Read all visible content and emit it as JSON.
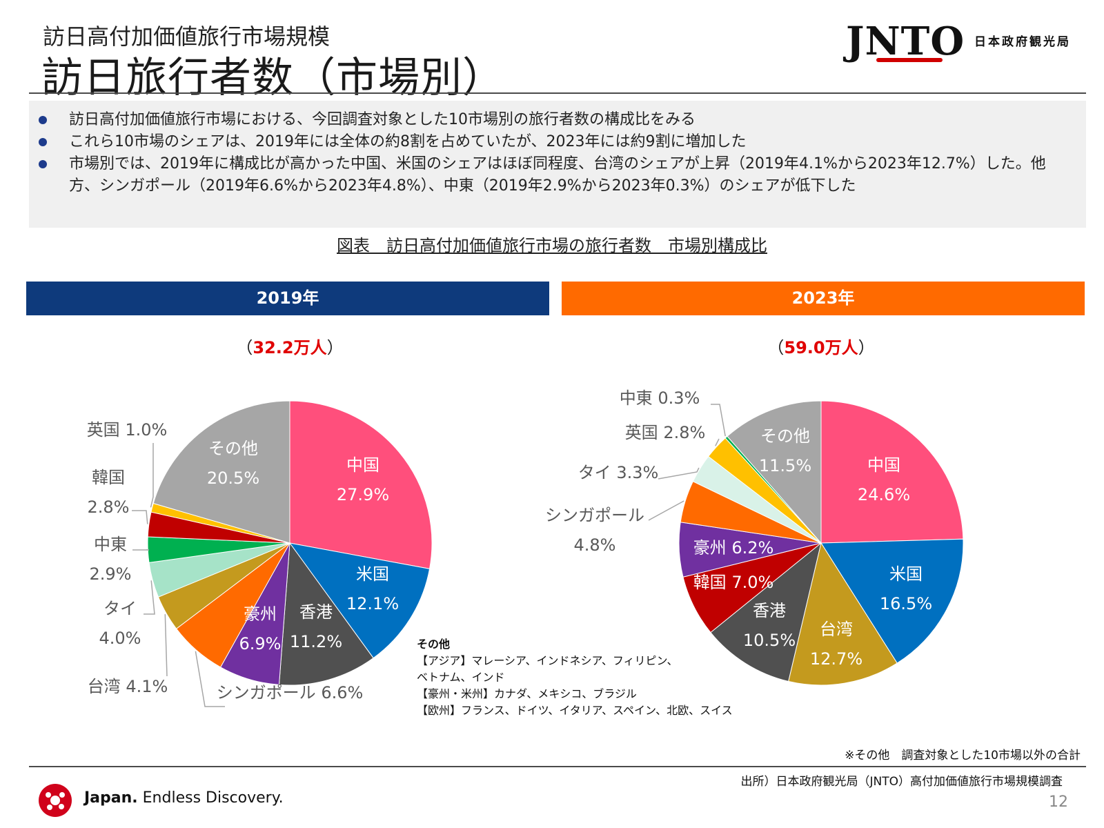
{
  "header": {
    "subtitle": "訪日高付加価値旅行市場規模",
    "title": "訪日旅行者数（市場別）",
    "logo": "JNTO",
    "agency": "日本政府観光局"
  },
  "bullets": [
    "訪日高付加価値旅行市場における、今回調査対象とした10市場別の旅行者数の構成比をみる",
    "これら10市場のシェアは、2019年には全体の約8割を占めていたが、2023年には約9割に増加した",
    "市場別では、2019年に構成比が高かった中国、米国のシェアはほぼ同程度、台湾のシェアが上昇（2019年4.1%から2023年12.7%）した。他方、シンガポール（2019年6.6%から2023年4.8%）、中東（2019年2.9%から2023年0.3%）のシェアが低下した"
  ],
  "figure_title": "図表　訪日高付加価値旅行市場の旅行者数　市場別構成比",
  "panels": {
    "y2019": {
      "label": "2019年",
      "total_open": "（",
      "total": "32.2万人",
      "total_close": "）"
    },
    "y2023": {
      "label": "2023年",
      "total_open": "（",
      "total": "59.0万人",
      "total_close": "）"
    }
  },
  "chart_data": [
    {
      "type": "pie",
      "title": "2019年",
      "total": "32.2万人",
      "unit": "%",
      "slices": [
        {
          "name": "中国",
          "value": 27.9,
          "color": "#ff4f7c"
        },
        {
          "name": "米国",
          "value": 12.1,
          "color": "#0070c0"
        },
        {
          "name": "香港",
          "value": 11.2,
          "color": "#505050"
        },
        {
          "name": "豪州",
          "value": 6.9,
          "color": "#7030a0"
        },
        {
          "name": "シンガポール",
          "value": 6.6,
          "color": "#ff6a00"
        },
        {
          "name": "台湾",
          "value": 4.1,
          "color": "#c49a1e"
        },
        {
          "name": "タイ",
          "value": 4.0,
          "color": "#a6e3c8"
        },
        {
          "name": "中東",
          "value": 2.9,
          "color": "#00b050"
        },
        {
          "name": "韓国",
          "value": 2.8,
          "color": "#c00000"
        },
        {
          "name": "英国",
          "value": 1.0,
          "color": "#ffc000"
        },
        {
          "name": "その他",
          "value": 20.5,
          "color": "#a6a6a6"
        }
      ],
      "labels": [
        {
          "lines": [
            "中国",
            "27.9%"
          ]
        },
        {
          "lines": [
            "米国",
            "12.1%"
          ]
        },
        {
          "lines": [
            "香港",
            "11.2%"
          ]
        },
        {
          "lines": [
            "豪州",
            "6.9%"
          ]
        },
        {
          "lines": [
            "シンガポール 6.6%"
          ]
        },
        {
          "lines": [
            "台湾 4.1%"
          ]
        },
        {
          "lines": [
            "タイ",
            "4.0%"
          ]
        },
        {
          "lines": [
            "中東",
            "2.9%"
          ]
        },
        {
          "lines": [
            "韓国",
            "2.8%"
          ]
        },
        {
          "lines": [
            "英国 1.0%"
          ]
        },
        {
          "lines": [
            "その他",
            "20.5%"
          ]
        }
      ]
    },
    {
      "type": "pie",
      "title": "2023年",
      "total": "59.0万人",
      "unit": "%",
      "slices": [
        {
          "name": "中国",
          "value": 24.6,
          "color": "#ff4f7c"
        },
        {
          "name": "米国",
          "value": 16.5,
          "color": "#0070c0"
        },
        {
          "name": "台湾",
          "value": 12.7,
          "color": "#c49a1e"
        },
        {
          "name": "香港",
          "value": 10.5,
          "color": "#505050"
        },
        {
          "name": "韓国",
          "value": 7.0,
          "color": "#c00000"
        },
        {
          "name": "豪州",
          "value": 6.2,
          "color": "#7030a0"
        },
        {
          "name": "シンガポール",
          "value": 4.8,
          "color": "#ff6a00"
        },
        {
          "name": "タイ",
          "value": 3.3,
          "color": "#d9f2e8"
        },
        {
          "name": "英国",
          "value": 2.8,
          "color": "#ffc000"
        },
        {
          "name": "中東",
          "value": 0.3,
          "color": "#00b050"
        },
        {
          "name": "その他",
          "value": 11.5,
          "color": "#a6a6a6"
        }
      ],
      "labels": [
        {
          "lines": [
            "中国",
            "24.6%"
          ]
        },
        {
          "lines": [
            "米国",
            "16.5%"
          ]
        },
        {
          "lines": [
            "台湾",
            "12.7%"
          ]
        },
        {
          "lines": [
            "香港",
            "10.5%"
          ]
        },
        {
          "lines": [
            "韓国 7.0%"
          ]
        },
        {
          "lines": [
            "豪州 6.2%"
          ]
        },
        {
          "lines": [
            "シンガポール",
            "4.8%"
          ]
        },
        {
          "lines": [
            "タイ 3.3%"
          ]
        },
        {
          "lines": [
            "英国 2.8%"
          ]
        },
        {
          "lines": [
            "中東 0.3%"
          ]
        },
        {
          "lines": [
            "その他",
            "11.5%"
          ]
        }
      ]
    }
  ],
  "other_note": {
    "heading": "その他",
    "lines": [
      "【アジア】マレーシア、インドネシア、フィリピン、",
      "ベトナム、インド",
      "【豪州・米州】カナダ、メキシコ、ブラジル",
      "【欧州】フランス、ドイツ、イタリア、スペイン、北欧、スイス"
    ]
  },
  "footnote": "※その他　調査対象とした10市場以外の合計",
  "source": "出所）日本政府観光局（JNTO）高付加価値旅行市場規模調査",
  "footer": {
    "brand": "Japan.",
    "tagline": " Endless Discovery."
  },
  "page_number": "12"
}
